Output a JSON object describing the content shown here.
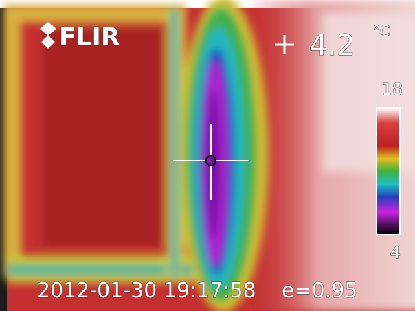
{
  "brand": "FLIR",
  "spot": {
    "value": "4.2",
    "unit": "°C"
  },
  "scale": {
    "max": "18",
    "min": "4"
  },
  "timestamp": "2012-01-30 19:17:58",
  "emissivity": "e=0.95"
}
